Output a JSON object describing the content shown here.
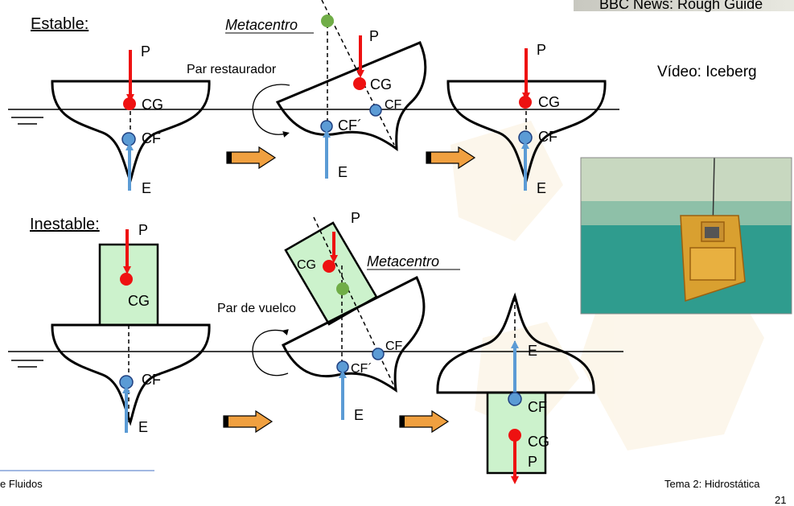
{
  "top_banner": "BBC News: Rough Guide",
  "stable": {
    "title": "Estable:",
    "metacenter": "Metacentro",
    "torque": "Par restaurador",
    "weight": "P",
    "cg": "CG",
    "cf": "CF",
    "cf_shift": "CF´",
    "buoyancy": "E"
  },
  "unstable": {
    "title": "Inestable:",
    "metacenter": "Metacentro",
    "torque": "Par de vuelco",
    "weight": "P",
    "cg": "CG",
    "cf": "CF",
    "cf_shift": "CF´",
    "buoyancy": "E"
  },
  "video": {
    "label": "Vídeo: Iceberg"
  },
  "footer": {
    "left": "e Fluidos",
    "right": "Tema 2: Hidrostática",
    "page": "21"
  },
  "colors": {
    "weight": "#ee1111",
    "buoyancy": "#5b9bd5",
    "metacenter": "#70ad47",
    "block": "#ccf2cc",
    "arrow_fill": "#f0a040",
    "water": "#2a9c8e"
  }
}
